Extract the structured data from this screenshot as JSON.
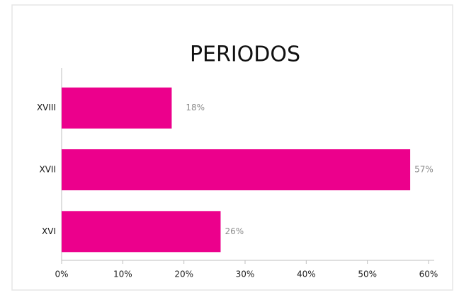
{
  "chart_data": {
    "type": "bar",
    "orientation": "horizontal",
    "title": "PERIODOS",
    "categories": [
      "XVIII",
      "XVII",
      "XVI"
    ],
    "values": [
      18,
      57,
      26
    ],
    "value_labels": [
      "18%",
      "57%",
      "26%"
    ],
    "color": "#ec008c",
    "xlim": [
      0,
      60
    ],
    "xticks": [
      {
        "value": 0,
        "label": "0%"
      },
      {
        "value": 10,
        "label": "10%"
      },
      {
        "value": 20,
        "label": "20%"
      },
      {
        "value": 30,
        "label": "30%"
      },
      {
        "value": 40,
        "label": "40%"
      },
      {
        "value": 50,
        "label": "50%"
      },
      {
        "value": 60,
        "label": "60%"
      }
    ],
    "grid": false
  }
}
